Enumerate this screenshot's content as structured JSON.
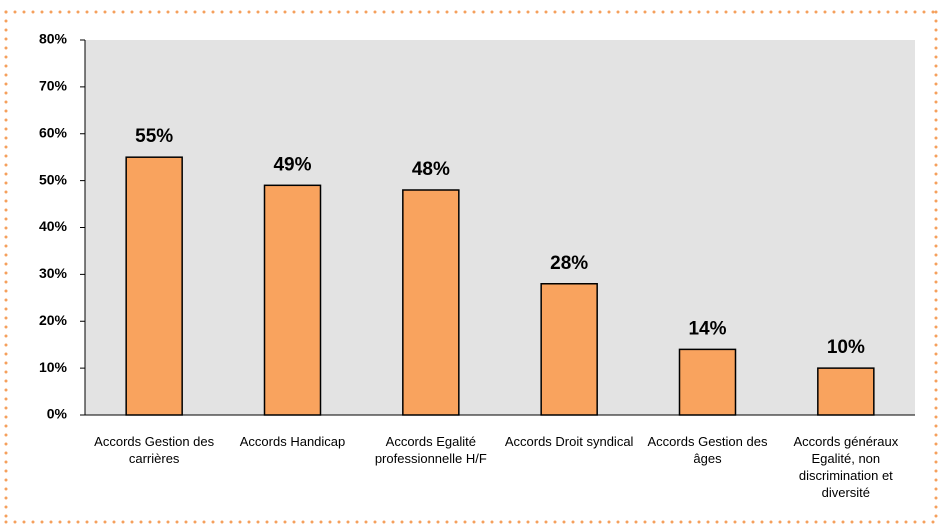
{
  "chart_data": {
    "type": "bar",
    "categories": [
      "Accords Gestion des carrières",
      "Accords Handicap",
      "Accords Egalité professionnelle H/F",
      "Accords Droit syndical",
      "Accords Gestion des âges",
      "Accords généraux Egalité, non discrimination et diversité"
    ],
    "values": [
      55,
      49,
      48,
      28,
      14,
      10
    ],
    "value_labels": [
      "55%",
      "49%",
      "48%",
      "28%",
      "14%",
      "10%"
    ],
    "color": "#f9a35e",
    "ylim": [
      0,
      80
    ],
    "yticks": [
      {
        "value": 0,
        "label": "0%"
      },
      {
        "value": 10,
        "label": "10%"
      },
      {
        "value": 20,
        "label": "20%"
      },
      {
        "value": 30,
        "label": "30%"
      },
      {
        "value": 40,
        "label": "40%"
      },
      {
        "value": 50,
        "label": "50%"
      },
      {
        "value": 60,
        "label": "60%"
      },
      {
        "value": 70,
        "label": "70%"
      },
      {
        "value": 80,
        "label": "80%"
      }
    ]
  }
}
